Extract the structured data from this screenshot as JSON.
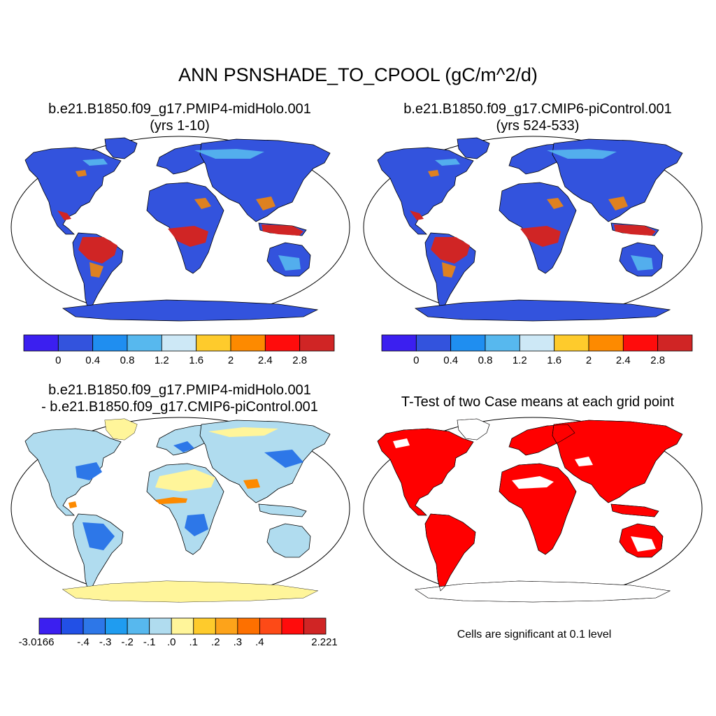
{
  "title": "ANN PSNSHADE_TO_CPOOL (gC/m^2/d)",
  "panels": {
    "top_left": {
      "title1": "b.e21.B1850.f09_g17.PMIP4-midHolo.001",
      "title2": "(yrs 1-10)"
    },
    "top_right": {
      "title1": "b.e21.B1850.f09_g17.CMIP6-piControl.001",
      "title2": "(yrs 524-533)"
    },
    "bottom_left": {
      "title1": "b.e21.B1850.f09_g17.PMIP4-midHolo.001",
      "title2": "- b.e21.B1850.f09_g17.CMIP6-piControl.001"
    },
    "bottom_right": {
      "title1": "T-Test of two Case means at each grid point",
      "note": "Cells are significant at 0.1 level"
    }
  },
  "colorbar_main": {
    "colors": [
      "#3b1ff0",
      "#3353dd",
      "#1f8ef0",
      "#57b8ee",
      "#cde8f6",
      "#fecb2c",
      "#fd8a00",
      "#ff0c0c",
      "#d02525"
    ],
    "tick_labels": [
      "0",
      "0.4",
      "0.8",
      "1.2",
      "1.6",
      "2",
      "2.4",
      "2.8"
    ]
  },
  "colorbar_diff": {
    "colors": [
      "#3b1ff0",
      "#2250e6",
      "#2d77e8",
      "#1f9cf0",
      "#57b8ee",
      "#b0dcef",
      "#fff59a",
      "#fecb2c",
      "#fda31a",
      "#fd7000",
      "#fd4a17",
      "#ff0c0c",
      "#d02525"
    ],
    "tick_labels": [
      "-3.0166",
      "-.4",
      "-.3",
      "-.2",
      "-.1",
      ".0",
      ".1",
      ".2",
      ".3",
      ".4",
      "2.221"
    ]
  },
  "colors": {
    "land_main": "#3353dd",
    "tropics_main": "#d02525",
    "land_diff": "#b0dcef",
    "significant": "#ff0000",
    "coast": "#000000"
  }
}
